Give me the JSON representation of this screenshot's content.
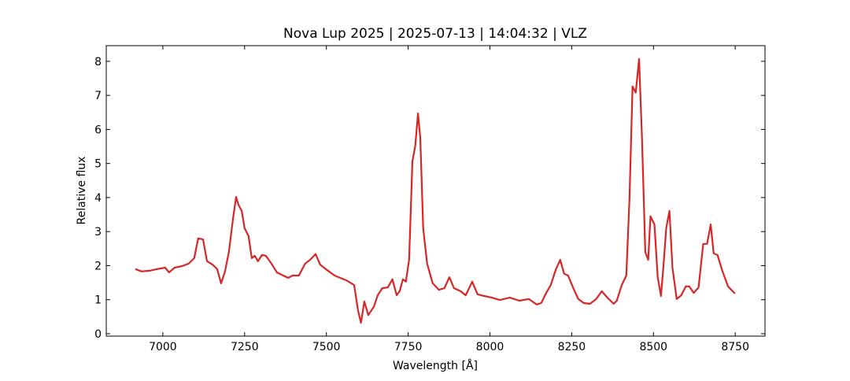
{
  "chart_data": {
    "type": "line",
    "title": "Nova Lup 2025 | 2025-07-13 | 14:04:32 | VLZ",
    "xlabel": "Wavelength [Å]",
    "ylabel": "Relative flux",
    "xlim": [
      6827,
      8841
    ],
    "ylim": [
      -0.07,
      8.46
    ],
    "xticks": [
      7000,
      7250,
      7500,
      7750,
      8000,
      8250,
      8500,
      8750
    ],
    "yticks": [
      0,
      1,
      2,
      3,
      4,
      5,
      6,
      7,
      8
    ],
    "grid": false,
    "series": [
      {
        "color": "#d62728",
        "x": [
          6916,
          6935,
          6959,
          6983,
          7007,
          7019,
          7036,
          7060,
          7079,
          7096,
          7108,
          7123,
          7135,
          7152,
          7166,
          7178,
          7190,
          7202,
          7214,
          7224,
          7231,
          7241,
          7250,
          7262,
          7272,
          7281,
          7291,
          7303,
          7315,
          7332,
          7349,
          7368,
          7383,
          7397,
          7416,
          7435,
          7450,
          7467,
          7481,
          7498,
          7525,
          7561,
          7585,
          7597,
          7606,
          7616,
          7628,
          7645,
          7657,
          7671,
          7688,
          7702,
          7715,
          7724,
          7734,
          7743,
          7753,
          7763,
          7772,
          7780,
          7787,
          7796,
          7808,
          7825,
          7844,
          7861,
          7876,
          7890,
          7910,
          7926,
          7946,
          7962,
          7982,
          8006,
          8030,
          8061,
          8090,
          8119,
          8143,
          8157,
          8172,
          8186,
          8201,
          8215,
          8227,
          8239,
          8254,
          8270,
          8287,
          8306,
          8325,
          8342,
          8359,
          8378,
          8388,
          8403,
          8417,
          8427,
          8436,
          8446,
          8456,
          8465,
          8475,
          8484,
          8491,
          8503,
          8513,
          8523,
          8530,
          8539,
          8549,
          8558,
          8571,
          8585,
          8599,
          8609,
          8623,
          8638,
          8652,
          8664,
          8675,
          8684,
          8696,
          8711,
          8728,
          8749
        ],
        "values": [
          1.9,
          1.83,
          1.85,
          1.9,
          1.94,
          1.8,
          1.94,
          1.99,
          2.06,
          2.22,
          2.8,
          2.77,
          2.13,
          2.03,
          1.9,
          1.48,
          1.83,
          2.4,
          3.33,
          4.02,
          3.79,
          3.61,
          3.1,
          2.87,
          2.22,
          2.29,
          2.13,
          2.31,
          2.29,
          2.06,
          1.8,
          1.71,
          1.64,
          1.71,
          1.71,
          2.06,
          2.17,
          2.34,
          2.03,
          1.9,
          1.71,
          1.57,
          1.43,
          0.67,
          0.32,
          0.95,
          0.55,
          0.79,
          1.13,
          1.34,
          1.36,
          1.6,
          1.13,
          1.25,
          1.6,
          1.53,
          2.17,
          5.06,
          5.53,
          6.47,
          5.76,
          3.1,
          2.06,
          1.48,
          1.29,
          1.34,
          1.66,
          1.34,
          1.25,
          1.13,
          1.53,
          1.16,
          1.11,
          1.06,
          0.99,
          1.06,
          0.97,
          1.02,
          0.86,
          0.9,
          1.2,
          1.43,
          1.87,
          2.17,
          1.76,
          1.71,
          1.36,
          1.02,
          0.9,
          0.88,
          1.02,
          1.25,
          1.06,
          0.88,
          0.97,
          1.43,
          1.71,
          4.02,
          7.26,
          7.08,
          8.07,
          5.76,
          2.4,
          2.17,
          3.45,
          3.21,
          1.66,
          1.11,
          1.94,
          3.1,
          3.61,
          1.94,
          1.02,
          1.13,
          1.39,
          1.39,
          1.2,
          1.36,
          2.64,
          2.64,
          3.21,
          2.36,
          2.31,
          1.83,
          1.39,
          1.18
        ]
      }
    ]
  }
}
